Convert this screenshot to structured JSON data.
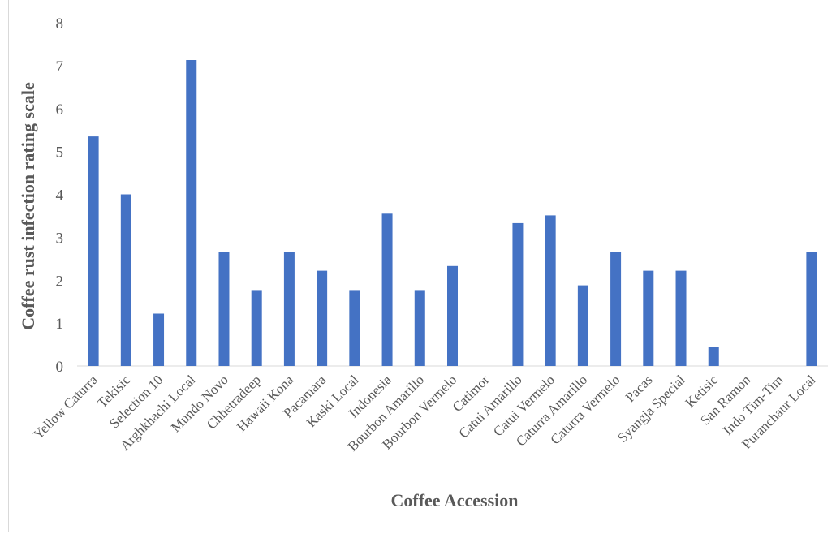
{
  "chart_data": {
    "type": "bar",
    "title": "",
    "xlabel": "Coffee Accession",
    "ylabel": "Coffee rust infection rating scale",
    "ylim": [
      0,
      8
    ],
    "yticks": [
      "0",
      "1",
      "2",
      "3",
      "4",
      "5",
      "6",
      "7",
      "8"
    ],
    "grid": false,
    "legend": "none",
    "bar_color": "#4472C4",
    "categories": [
      "Yellow Caturra",
      "Tekisic",
      "Selection 10",
      "Arghkhachi Local",
      "Mundo Novo",
      "Chhetradeep",
      "Hawaii Kona",
      "Pacamara",
      "Kaski Local",
      "Indonesia",
      "Bourbon Amarillo",
      "Bourbon Vermelo",
      "Catimor",
      "Catui Amarillo",
      "Catui Vermelo",
      "Caturra Amarillo",
      "Caturra Vermelo",
      "Pacas",
      "Syangja Special",
      "Ketisic",
      "San Ramon",
      "Indo Tim-Tim",
      "Puranchaur Local"
    ],
    "values": [
      5.35,
      4.0,
      1.22,
      7.13,
      2.66,
      1.77,
      2.66,
      2.22,
      1.77,
      3.55,
      1.77,
      2.33,
      0,
      3.33,
      3.51,
      1.88,
      2.66,
      2.22,
      2.22,
      0.44,
      0,
      0,
      2.66
    ]
  }
}
